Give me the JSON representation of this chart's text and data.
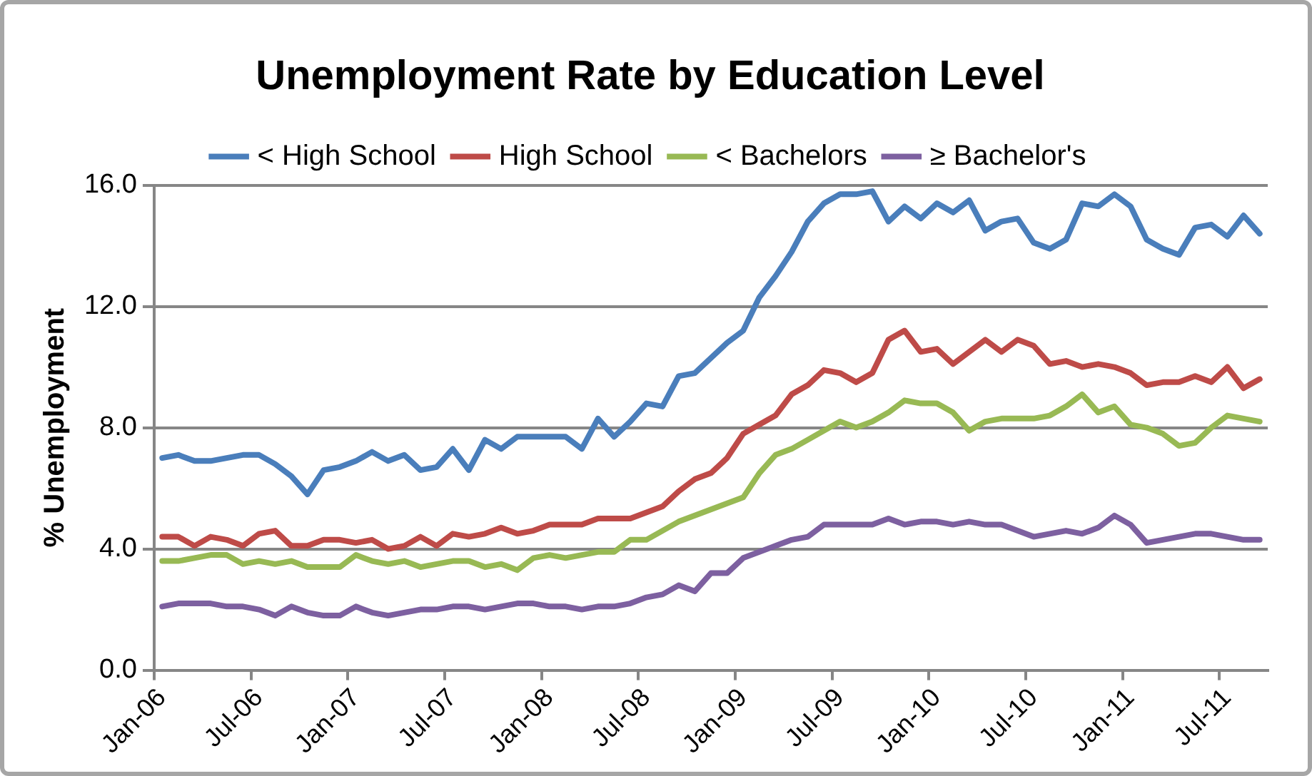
{
  "chart_data": {
    "type": "line",
    "title": "Unemployment Rate by Education Level",
    "ylabel": "% Unemployment",
    "categories": [
      "Jan-06",
      null,
      null,
      null,
      null,
      null,
      "Jul-06",
      null,
      null,
      null,
      null,
      null,
      "Jan-07",
      null,
      null,
      null,
      null,
      null,
      "Jul-07",
      null,
      null,
      null,
      null,
      null,
      "Jan-08",
      null,
      null,
      null,
      null,
      null,
      "Jul-08",
      null,
      null,
      null,
      null,
      null,
      "Jan-09",
      null,
      null,
      null,
      null,
      null,
      "Jul-09",
      null,
      null,
      null,
      null,
      null,
      "Jan-10",
      null,
      null,
      null,
      null,
      null,
      "Jul-10",
      null,
      null,
      null,
      null,
      null,
      "Jan-11",
      null,
      null,
      null,
      null,
      null,
      "Jul-11",
      null,
      null
    ],
    "series": [
      {
        "name": "< High School",
        "color": "#4a7ebb",
        "values": [
          7.0,
          7.1,
          6.9,
          6.9,
          7.0,
          7.1,
          7.1,
          6.8,
          6.4,
          5.8,
          6.6,
          6.7,
          6.9,
          7.2,
          6.9,
          7.1,
          6.6,
          6.7,
          7.3,
          6.6,
          7.6,
          7.3,
          7.7,
          7.7,
          7.7,
          7.7,
          7.3,
          8.3,
          7.7,
          8.2,
          8.8,
          8.7,
          9.7,
          9.8,
          10.3,
          10.8,
          11.2,
          12.3,
          13.0,
          13.8,
          14.8,
          15.4,
          15.7,
          15.7,
          15.8,
          14.8,
          15.3,
          14.9,
          15.4,
          15.1,
          15.5,
          14.5,
          14.8,
          14.9,
          14.1,
          13.9,
          14.2,
          15.4,
          15.3,
          15.7,
          15.3,
          14.2,
          13.9,
          13.7,
          14.6,
          14.7,
          14.3,
          15.0,
          14.4
        ]
      },
      {
        "name": "High School",
        "color": "#be4b48",
        "values": [
          4.4,
          4.4,
          4.1,
          4.4,
          4.3,
          4.1,
          4.5,
          4.6,
          4.1,
          4.1,
          4.3,
          4.3,
          4.2,
          4.3,
          4.0,
          4.1,
          4.4,
          4.1,
          4.5,
          4.4,
          4.5,
          4.7,
          4.5,
          4.6,
          4.8,
          4.8,
          4.8,
          5.0,
          5.0,
          5.0,
          5.2,
          5.4,
          5.9,
          6.3,
          6.5,
          7.0,
          7.8,
          8.1,
          8.4,
          9.1,
          9.4,
          9.9,
          9.8,
          9.5,
          9.8,
          10.9,
          11.2,
          10.5,
          10.6,
          10.1,
          10.5,
          10.9,
          10.5,
          10.9,
          10.7,
          10.1,
          10.2,
          10.0,
          10.1,
          10.0,
          9.8,
          9.4,
          9.5,
          9.5,
          9.7,
          9.5,
          10.0,
          9.3,
          9.6
        ]
      },
      {
        "name": "< Bachelors",
        "color": "#98b954",
        "values": [
          3.6,
          3.6,
          3.7,
          3.8,
          3.8,
          3.5,
          3.6,
          3.5,
          3.6,
          3.4,
          3.4,
          3.4,
          3.8,
          3.6,
          3.5,
          3.6,
          3.4,
          3.5,
          3.6,
          3.6,
          3.4,
          3.5,
          3.3,
          3.7,
          3.8,
          3.7,
          3.8,
          3.9,
          3.9,
          4.3,
          4.3,
          4.6,
          4.9,
          5.1,
          5.3,
          5.5,
          5.7,
          6.5,
          7.1,
          7.3,
          7.6,
          7.9,
          8.2,
          8.0,
          8.2,
          8.5,
          8.9,
          8.8,
          8.8,
          8.5,
          7.9,
          8.2,
          8.3,
          8.3,
          8.3,
          8.4,
          8.7,
          9.1,
          8.5,
          8.7,
          8.1,
          8.0,
          7.8,
          7.4,
          7.5,
          8.0,
          8.4,
          8.3,
          8.2
        ]
      },
      {
        "name": "≥ Bachelor's",
        "color": "#7d60a0",
        "values": [
          2.1,
          2.2,
          2.2,
          2.2,
          2.1,
          2.1,
          2.0,
          1.8,
          2.1,
          1.9,
          1.8,
          1.8,
          2.1,
          1.9,
          1.8,
          1.9,
          2.0,
          2.0,
          2.1,
          2.1,
          2.0,
          2.1,
          2.2,
          2.2,
          2.1,
          2.1,
          2.0,
          2.1,
          2.1,
          2.2,
          2.4,
          2.5,
          2.8,
          2.6,
          3.2,
          3.2,
          3.7,
          3.9,
          4.1,
          4.3,
          4.4,
          4.8,
          4.8,
          4.8,
          4.8,
          5.0,
          4.8,
          4.9,
          4.9,
          4.8,
          4.9,
          4.8,
          4.8,
          4.6,
          4.4,
          4.5,
          4.6,
          4.5,
          4.7,
          5.1,
          4.8,
          4.2,
          4.3,
          4.4,
          4.5,
          4.5,
          4.4,
          4.3,
          4.3
        ]
      }
    ],
    "ylim": [
      0,
      16
    ],
    "yticks": [
      {
        "value": 0,
        "label": "0.0"
      },
      {
        "value": 4,
        "label": "4.0"
      },
      {
        "value": 8,
        "label": "8.0"
      },
      {
        "value": 12,
        "label": "12.0"
      },
      {
        "value": 16,
        "label": "16.0"
      }
    ],
    "grid": "y",
    "legend": "top",
    "marker": "none",
    "line_style": "solid"
  }
}
